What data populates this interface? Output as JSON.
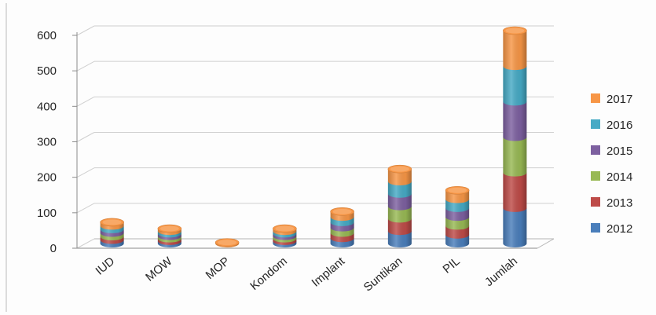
{
  "chart_data": {
    "type": "bar",
    "stacked": true,
    "style": "3d-cylinder",
    "categories": [
      "IUD",
      "MOW",
      "MOP",
      "Kondom",
      "Implant",
      "Suntikan",
      "PIL",
      "Jumlah"
    ],
    "series": [
      {
        "name": "2012",
        "color": "#4a7ebb",
        "values": [
          10,
          7,
          0,
          7,
          15,
          35,
          25,
          100
        ]
      },
      {
        "name": "2013",
        "color": "#be4b48",
        "values": [
          10,
          7,
          0,
          7,
          15,
          35,
          25,
          100
        ]
      },
      {
        "name": "2014",
        "color": "#98b954",
        "values": [
          10,
          7,
          0,
          7,
          15,
          35,
          25,
          100
        ]
      },
      {
        "name": "2015",
        "color": "#7d60a0",
        "values": [
          10,
          7,
          0,
          7,
          15,
          35,
          25,
          100
        ]
      },
      {
        "name": "2016",
        "color": "#46aac5",
        "values": [
          10,
          7,
          0,
          7,
          15,
          35,
          25,
          100
        ]
      },
      {
        "name": "2017",
        "color": "#f79646",
        "values": [
          10,
          7,
          3,
          7,
          15,
          35,
          25,
          100
        ]
      }
    ],
    "y_ticks": [
      "0",
      "100",
      "200",
      "300",
      "400",
      "500",
      "600"
    ],
    "ylim": [
      0,
      600
    ],
    "grid": true,
    "legend_position": "right",
    "title": "",
    "xlabel": "",
    "ylabel": ""
  }
}
